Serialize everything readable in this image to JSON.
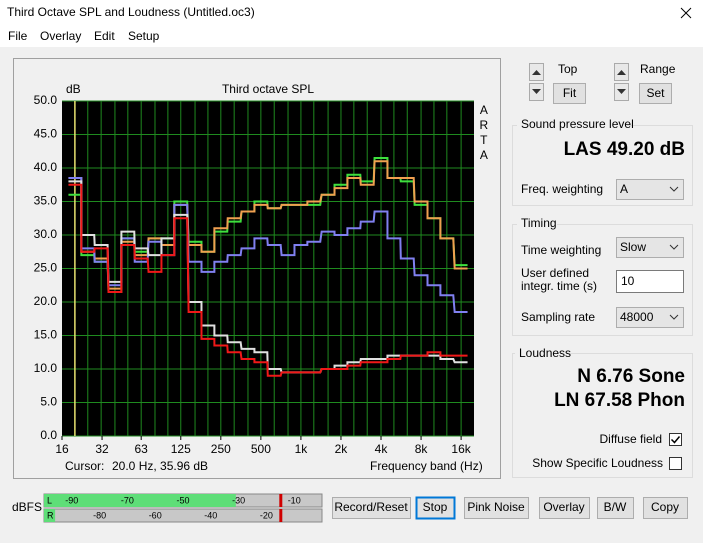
{
  "window": {
    "title": "Third Octave SPL and Loudness (Untitled.oc3)"
  },
  "menu": [
    "File",
    "Overlay",
    "Edit",
    "Setup"
  ],
  "chart": {
    "type": "line",
    "title": "Third octave SPL",
    "y_label": "dB",
    "x_label": "Frequency band (Hz)",
    "brand": "ARTA",
    "cursor_label": "Cursor:",
    "cursor_readout": "20.0 Hz, 35.96 dB",
    "cursor_x": 20,
    "cursor_color": "#e8e070",
    "log_x": true,
    "grid": true,
    "grid_color": "#1f8a1f",
    "x": [
      20,
      25,
      31.5,
      40,
      50,
      63,
      80,
      100,
      125,
      160,
      200,
      250,
      315,
      400,
      500,
      630,
      800,
      1000,
      1250,
      1600,
      2000,
      2500,
      3150,
      4000,
      5000,
      6300,
      8000,
      10000,
      12500,
      16000
    ],
    "xlim": [
      16,
      20000
    ],
    "xticks": [
      16,
      32,
      63,
      125,
      250,
      500,
      {
        "value": 1000,
        "label": "1k"
      },
      {
        "value": 2000,
        "label": "2k"
      },
      {
        "value": 4000,
        "label": "4k"
      },
      {
        "value": 8000,
        "label": "8k"
      },
      {
        "value": 16000,
        "label": "16k"
      }
    ],
    "ylim": [
      0,
      50
    ],
    "yticks": [
      {
        "value": 0,
        "label": "0.0"
      },
      {
        "value": 5,
        "label": "5.0"
      },
      {
        "value": 10,
        "label": "10.0"
      },
      {
        "value": 15,
        "label": "15.0"
      },
      {
        "value": 20,
        "label": "20.0"
      },
      {
        "value": 25,
        "label": "25.0"
      },
      {
        "value": 30,
        "label": "30.0"
      },
      {
        "value": 35,
        "label": "35.0"
      },
      {
        "value": 40,
        "label": "40.0"
      },
      {
        "value": 45,
        "label": "45.0"
      },
      {
        "value": 50,
        "label": "50.0"
      }
    ],
    "series": [
      {
        "color": "#3ee03e",
        "values": [
          36,
          27,
          26,
          21.5,
          29.5,
          27.5,
          29.5,
          29.5,
          35,
          29,
          27.5,
          30.5,
          32,
          33.5,
          35,
          34,
          34.5,
          34.5,
          34.5,
          36,
          37.5,
          39,
          38,
          41.5,
          38.5,
          38,
          34.5,
          32.5,
          29.5,
          25.5
        ]
      },
      {
        "color": "#f0a050",
        "values": [
          38.5,
          27.5,
          26.5,
          22,
          29,
          27,
          29.5,
          28.5,
          34.5,
          28.5,
          27.5,
          31,
          32.5,
          33.5,
          34.5,
          34,
          34.5,
          34.5,
          35,
          36,
          37,
          38.5,
          37.5,
          41,
          38.5,
          38.5,
          35,
          32.5,
          29.5,
          25
        ]
      },
      {
        "color": "#8080f0",
        "values": [
          38.5,
          28,
          26,
          22.5,
          29.5,
          26,
          29,
          27,
          34.5,
          26,
          24.5,
          26,
          27,
          28,
          29.5,
          28.5,
          27,
          28.5,
          29,
          30.5,
          30,
          31,
          32,
          33.5,
          29.5,
          26.5,
          24,
          22.5,
          21,
          18.5
        ]
      },
      {
        "color": "#e0e0e0",
        "values": [
          38,
          30,
          28.5,
          23,
          30.5,
          28,
          27,
          29.5,
          33,
          20,
          16.5,
          15,
          14,
          13,
          12.5,
          10,
          9.5,
          9.5,
          9.5,
          10,
          10.5,
          11,
          11.5,
          11.5,
          12,
          12,
          12,
          12,
          11.5,
          11
        ]
      },
      {
        "color": "#f01818",
        "values": [
          37.5,
          27.5,
          28,
          21.5,
          28.5,
          26.5,
          24.5,
          27,
          32.5,
          18.5,
          14.5,
          13.5,
          12.5,
          11.5,
          11,
          9,
          9.5,
          9.5,
          9.5,
          10,
          10,
          10.5,
          11,
          11,
          11.5,
          12,
          12,
          12.5,
          12,
          12
        ]
      }
    ]
  },
  "controls": {
    "top": {
      "label": "Top",
      "button": "Fit"
    },
    "range": {
      "label": "Range",
      "button": "Set"
    }
  },
  "spl": {
    "title": "Sound pressure level",
    "reading": "LAS 49.20 dB",
    "weighting_label": "Freq. weighting",
    "weighting": "A"
  },
  "timing": {
    "title": "Timing",
    "time_weighting_label": "Time weighting",
    "time_weighting": "Slow",
    "integr_label": [
      "User defined",
      "integr. time (s)"
    ],
    "integr_time": "10",
    "sampling_label": "Sampling rate",
    "sampling": "48000"
  },
  "loudness": {
    "title": "Loudness",
    "n": "N 6.76 Sone",
    "ln": "LN 67.58 Phon",
    "diffuse": "Diffuse field",
    "diffuse_checked": true,
    "specific": "Show Specific Loudness",
    "specific_checked": false
  },
  "meter": {
    "label": "dBFS",
    "range": [
      -100,
      0
    ],
    "rows": [
      {
        "label": "L",
        "level": -31,
        "peak": -15,
        "ticks": [
          -90,
          -70,
          -50,
          -30,
          -10
        ]
      },
      {
        "label": "R",
        "level": -96,
        "peak": -15,
        "ticks": [
          -80,
          -60,
          -40,
          -20
        ]
      }
    ]
  },
  "buttons": [
    "Record/Reset",
    "Stop",
    "Pink Noise",
    "Overlay",
    "B/W",
    "Copy"
  ]
}
